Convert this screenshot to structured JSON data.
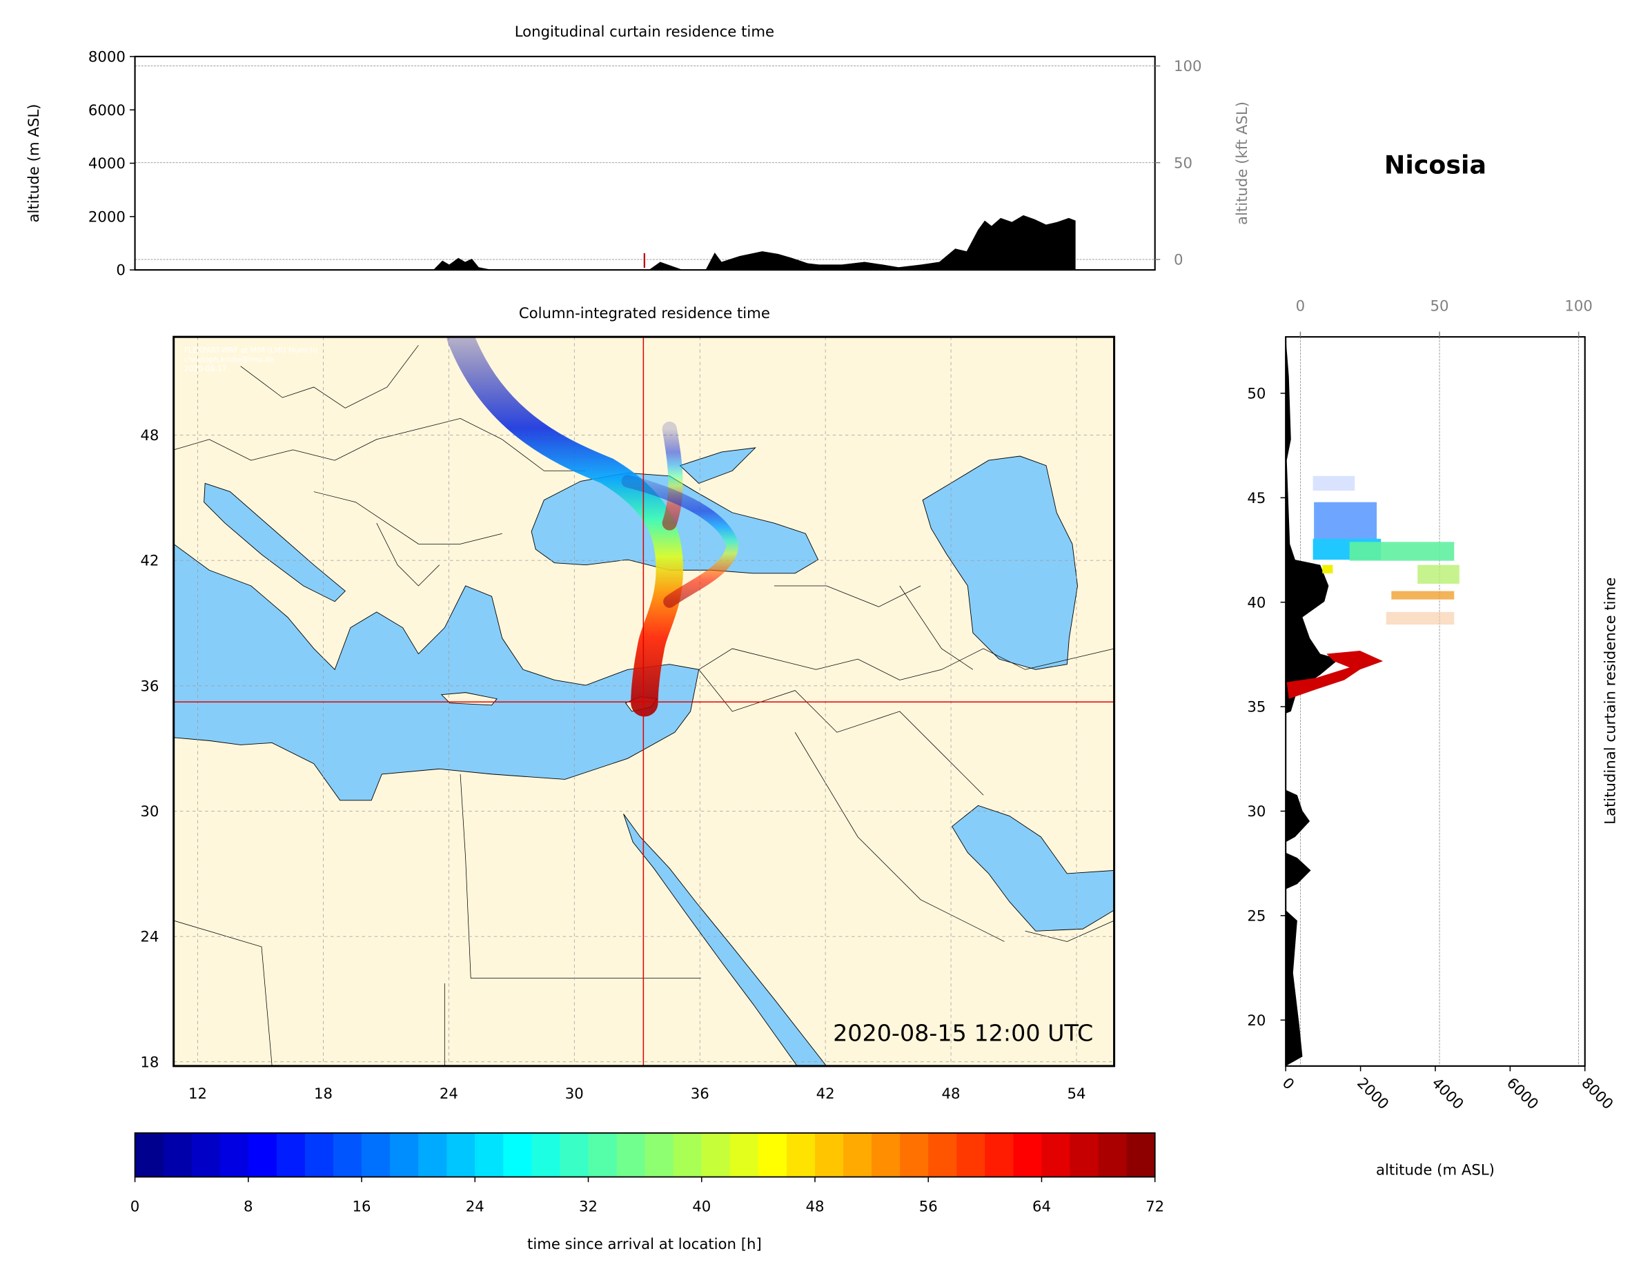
{
  "station": "Nicosia",
  "chart_data": [
    {
      "id": "longitudinal",
      "type": "area",
      "title": "Longitudinal curtain residence time",
      "ylabel": "altitude (m ASL)",
      "ylabel_right": "altitude (kft ASL)",
      "ylim": [
        0,
        8000
      ],
      "yticks": [
        0,
        2000,
        4000,
        6000,
        8000
      ],
      "yticks_right": [
        0,
        50,
        100
      ],
      "ylim_right_kft": [
        -4,
        104
      ],
      "x_lon_range": [
        10.85,
        55.8
      ],
      "terrain_profile": {
        "lon": [
          24.0,
          24.4,
          24.7,
          25.1,
          25.4,
          25.7,
          26.0,
          26.6,
          33.5,
          34.0,
          34.5,
          35.0,
          36.0,
          36.4,
          36.7,
          37.5,
          38.5,
          39.2,
          39.8,
          40.5,
          41.0,
          42.0,
          43.0,
          43.8,
          44.5,
          45.5,
          46.3,
          47.0,
          47.5,
          48.0,
          48.3,
          48.6,
          49.0,
          49.5,
          50.0,
          50.5,
          51.0,
          51.5,
          52.0,
          52.3
        ],
        "alt": [
          0,
          350,
          200,
          450,
          300,
          420,
          100,
          0,
          0,
          300,
          150,
          0,
          0,
          650,
          300,
          520,
          700,
          600,
          450,
          250,
          200,
          200,
          300,
          200,
          100,
          200,
          300,
          800,
          700,
          1500,
          1850,
          1650,
          1950,
          1800,
          2050,
          1900,
          1700,
          1800,
          1950,
          1850
        ]
      },
      "marker_alt": 400
    },
    {
      "id": "column",
      "type": "heatmap",
      "title": "Column-integrated residence time",
      "xticks": [
        12,
        18,
        24,
        30,
        36,
        42,
        48,
        54
      ],
      "yticks": [
        18,
        24,
        30,
        36,
        42,
        48
      ],
      "xlim": [
        10.85,
        55.8
      ],
      "ylim": [
        17.8,
        52.7
      ],
      "station_lon": 33.35,
      "station_lat": 35.17,
      "timestamp": "2020-08-15 12:00 UTC",
      "watermark": [
        "FLEXPART-WRF at MIM (LMU Munich)",
        "christoph.knote@lmu.de",
        "2020-08-17"
      ],
      "plume_path": [
        {
          "lon": 24.0,
          "lat": 52.7,
          "t": 72
        },
        {
          "lon": 26.5,
          "lat": 49.0,
          "t": 64
        },
        {
          "lon": 30.0,
          "lat": 46.5,
          "t": 56
        },
        {
          "lon": 33.5,
          "lat": 44.0,
          "t": 44
        },
        {
          "lon": 34.5,
          "lat": 42.0,
          "t": 32
        },
        {
          "lon": 34.0,
          "lat": 40.5,
          "t": 20
        },
        {
          "lon": 33.6,
          "lat": 38.5,
          "t": 10
        },
        {
          "lon": 33.4,
          "lat": 36.5,
          "t": 4
        },
        {
          "lon": 33.35,
          "lat": 35.2,
          "t": 0
        }
      ]
    },
    {
      "id": "latitudinal",
      "type": "area",
      "ylabel_right": "Latitudinal curtain residence time",
      "xlabel": "altitude (m ASL)",
      "xticks": [
        0,
        2000,
        4000,
        6000,
        8000
      ],
      "xticks_top_kft": [
        0,
        50,
        100
      ],
      "yticks": [
        20,
        25,
        30,
        35,
        40,
        45,
        50
      ],
      "ylim": [
        17.8,
        52.7
      ]
    },
    {
      "id": "colorbar",
      "type": "bar",
      "label": "time since arrival at location [h]",
      "ticks": [
        0,
        8,
        16,
        24,
        32,
        40,
        48,
        56,
        64,
        72
      ],
      "range": [
        0,
        72
      ],
      "colormap": "jet"
    }
  ],
  "colors": {
    "land": "#fff7dc",
    "sea": "#87cdf9",
    "crosshair": "#e00000",
    "terrain": "#000000",
    "secondary_axis": "#808080"
  }
}
